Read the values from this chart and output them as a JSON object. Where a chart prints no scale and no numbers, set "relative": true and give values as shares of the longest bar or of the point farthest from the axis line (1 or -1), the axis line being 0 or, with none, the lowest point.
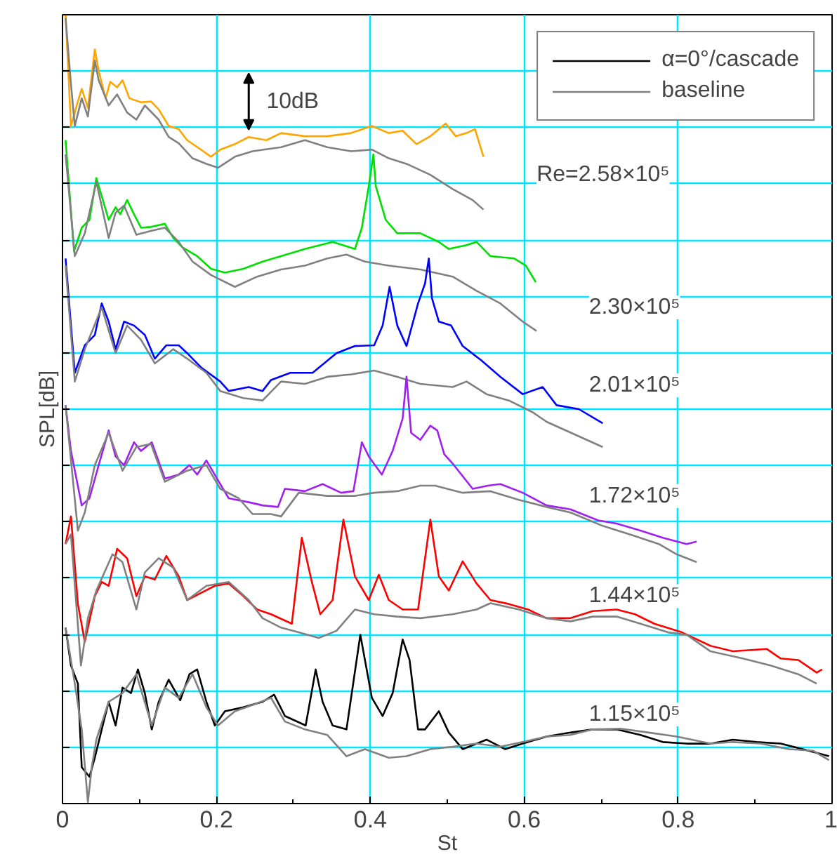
{
  "chart_data": {
    "type": "line",
    "relative": true,
    "xlabel": "St",
    "ylabel": "SPL[dB]",
    "xlim": [
      0,
      1
    ],
    "xticks": [
      0,
      0.2,
      0.4,
      0.6,
      0.8,
      1
    ],
    "tick_labels": "x",
    "grid": true,
    "legend": "top right",
    "line_style": "solid",
    "marker": "none",
    "annotations": [
      "10dB",
      "Re=2.58×10⁵",
      "2.30×10⁵",
      "2.01×10⁵",
      "1.72×10⁵",
      "1.44×10⁵",
      "1.15×10⁵"
    ],
    "series": [
      {
        "color": "#ffa500",
        "x": [
          0.004,
          0.011,
          0.02,
          0.025,
          0.033,
          0.042,
          0.047,
          0.056,
          0.062,
          0.071,
          0.078,
          0.087,
          0.102,
          0.115,
          0.125,
          0.138,
          0.151,
          0.162,
          0.18,
          0.193,
          0.205,
          0.224,
          0.242,
          0.265,
          0.284,
          0.315,
          0.344,
          0.375,
          0.402,
          0.424,
          0.442,
          0.46,
          0.478,
          0.498,
          0.511,
          0.525,
          0.536,
          0.547
        ],
        "values": [
          1.0,
          0.859,
          0.89,
          0.906,
          0.882,
          0.956,
          0.929,
          0.894,
          0.915,
          0.908,
          0.917,
          0.894,
          0.889,
          0.89,
          0.88,
          0.859,
          0.855,
          0.841,
          0.829,
          0.82,
          0.829,
          0.836,
          0.845,
          0.841,
          0.85,
          0.846,
          0.846,
          0.85,
          0.859,
          0.85,
          0.853,
          0.836,
          0.846,
          0.862,
          0.846,
          0.85,
          0.855,
          0.82
        ]
      },
      {
        "name": "baseline",
        "color": "#808080",
        "x": [
          0.004,
          0.011,
          0.016,
          0.025,
          0.033,
          0.042,
          0.047,
          0.06,
          0.071,
          0.084,
          0.096,
          0.107,
          0.125,
          0.138,
          0.151,
          0.169,
          0.187,
          0.202,
          0.224,
          0.247,
          0.284,
          0.315,
          0.344,
          0.375,
          0.402,
          0.424,
          0.447,
          0.478,
          0.507,
          0.533,
          0.547
        ],
        "values": [
          0.996,
          0.912,
          0.859,
          0.894,
          0.871,
          0.942,
          0.917,
          0.885,
          0.899,
          0.876,
          0.867,
          0.885,
          0.867,
          0.845,
          0.837,
          0.818,
          0.811,
          0.806,
          0.82,
          0.827,
          0.832,
          0.841,
          0.832,
          0.827,
          0.829,
          0.818,
          0.811,
          0.797,
          0.779,
          0.765,
          0.753
        ]
      },
      {
        "color": "#00e000",
        "x": [
          0.004,
          0.015,
          0.025,
          0.035,
          0.044,
          0.051,
          0.06,
          0.069,
          0.075,
          0.084,
          0.093,
          0.102,
          0.115,
          0.133,
          0.144,
          0.156,
          0.175,
          0.193,
          0.211,
          0.235,
          0.26,
          0.284,
          0.315,
          0.351,
          0.38,
          0.389,
          0.398,
          0.404,
          0.407,
          0.42,
          0.435,
          0.465,
          0.489,
          0.502,
          0.525,
          0.538,
          0.556,
          0.587,
          0.602,
          0.615
        ],
        "values": [
          0.841,
          0.7,
          0.73,
          0.74,
          0.793,
          0.77,
          0.74,
          0.756,
          0.747,
          0.765,
          0.747,
          0.73,
          0.731,
          0.735,
          0.717,
          0.705,
          0.694,
          0.678,
          0.673,
          0.678,
          0.687,
          0.694,
          0.703,
          0.712,
          0.703,
          0.73,
          0.783,
          0.823,
          0.783,
          0.74,
          0.723,
          0.723,
          0.712,
          0.703,
          0.708,
          0.712,
          0.694,
          0.691,
          0.682,
          0.661
        ]
      },
      {
        "color": "#808080",
        "x": [
          0.004,
          0.016,
          0.029,
          0.044,
          0.06,
          0.069,
          0.08,
          0.096,
          0.115,
          0.133,
          0.151,
          0.169,
          0.193,
          0.224,
          0.253,
          0.284,
          0.315,
          0.344,
          0.369,
          0.393,
          0.424,
          0.465,
          0.507,
          0.538,
          0.569,
          0.598,
          0.616
        ],
        "values": [
          0.823,
          0.694,
          0.723,
          0.788,
          0.717,
          0.749,
          0.758,
          0.721,
          0.726,
          0.73,
          0.712,
          0.687,
          0.67,
          0.655,
          0.668,
          0.677,
          0.682,
          0.691,
          0.696,
          0.687,
          0.682,
          0.677,
          0.668,
          0.65,
          0.634,
          0.611,
          0.599
        ]
      },
      {
        "color": "#0000ff",
        "x": [
          0.004,
          0.016,
          0.029,
          0.042,
          0.051,
          0.06,
          0.069,
          0.08,
          0.093,
          0.107,
          0.12,
          0.135,
          0.151,
          0.162,
          0.18,
          0.205,
          0.216,
          0.242,
          0.26,
          0.271,
          0.296,
          0.325,
          0.356,
          0.38,
          0.405,
          0.416,
          0.425,
          0.435,
          0.447,
          0.462,
          0.471,
          0.476,
          0.48,
          0.489,
          0.505,
          0.52,
          0.544,
          0.569,
          0.598,
          0.624,
          0.642,
          0.671,
          0.702
        ],
        "values": [
          0.691,
          0.546,
          0.581,
          0.594,
          0.634,
          0.611,
          0.576,
          0.611,
          0.606,
          0.594,
          0.564,
          0.581,
          0.581,
          0.571,
          0.553,
          0.535,
          0.523,
          0.528,
          0.523,
          0.537,
          0.546,
          0.546,
          0.571,
          0.58,
          0.581,
          0.606,
          0.655,
          0.606,
          0.58,
          0.634,
          0.659,
          0.691,
          0.641,
          0.611,
          0.606,
          0.58,
          0.562,
          0.541,
          0.519,
          0.528,
          0.505,
          0.5,
          0.482
        ]
      },
      {
        "color": "#808080",
        "x": [
          0.004,
          0.016,
          0.029,
          0.051,
          0.069,
          0.084,
          0.102,
          0.12,
          0.144,
          0.162,
          0.187,
          0.205,
          0.235,
          0.26,
          0.284,
          0.315,
          0.344,
          0.375,
          0.405,
          0.435,
          0.465,
          0.507,
          0.525,
          0.551,
          0.58,
          0.611,
          0.629,
          0.702
        ],
        "values": [
          0.682,
          0.535,
          0.576,
          0.629,
          0.571,
          0.606,
          0.588,
          0.558,
          0.576,
          0.564,
          0.546,
          0.523,
          0.514,
          0.511,
          0.535,
          0.532,
          0.541,
          0.544,
          0.549,
          0.541,
          0.532,
          0.528,
          0.535,
          0.519,
          0.511,
          0.496,
          0.484,
          0.452
        ]
      },
      {
        "color": "#a020f0",
        "x": [
          0.004,
          0.011,
          0.025,
          0.035,
          0.047,
          0.06,
          0.069,
          0.08,
          0.093,
          0.102,
          0.116,
          0.133,
          0.151,
          0.165,
          0.175,
          0.187,
          0.205,
          0.216,
          0.242,
          0.26,
          0.28,
          0.289,
          0.315,
          0.338,
          0.362,
          0.378,
          0.389,
          0.398,
          0.415,
          0.429,
          0.442,
          0.447,
          0.453,
          0.465,
          0.478,
          0.487,
          0.496,
          0.507,
          0.533,
          0.553,
          0.569,
          0.598,
          0.629,
          0.66,
          0.696,
          0.72,
          0.751,
          0.78,
          0.811,
          0.824
        ],
        "values": [
          0.505,
          0.447,
          0.378,
          0.387,
          0.429,
          0.473,
          0.44,
          0.429,
          0.458,
          0.447,
          0.458,
          0.412,
          0.417,
          0.429,
          0.417,
          0.435,
          0.405,
          0.387,
          0.382,
          0.378,
          0.376,
          0.399,
          0.396,
          0.405,
          0.394,
          0.396,
          0.458,
          0.44,
          0.417,
          0.447,
          0.488,
          0.541,
          0.47,
          0.461,
          0.479,
          0.473,
          0.443,
          0.431,
          0.399,
          0.403,
          0.405,
          0.394,
          0.378,
          0.373,
          0.359,
          0.355,
          0.346,
          0.337,
          0.329,
          0.332
        ]
      },
      {
        "color": "#808080",
        "x": [
          0.004,
          0.02,
          0.029,
          0.042,
          0.06,
          0.078,
          0.096,
          0.115,
          0.133,
          0.162,
          0.187,
          0.205,
          0.229,
          0.247,
          0.271,
          0.284,
          0.307,
          0.344,
          0.38,
          0.405,
          0.435,
          0.465,
          0.484,
          0.52,
          0.556,
          0.593,
          0.629,
          0.66,
          0.702,
          0.738,
          0.775,
          0.798,
          0.824
        ],
        "values": [
          0.505,
          0.346,
          0.369,
          0.429,
          0.47,
          0.422,
          0.452,
          0.456,
          0.408,
          0.422,
          0.429,
          0.399,
          0.387,
          0.367,
          0.367,
          0.364,
          0.394,
          0.39,
          0.39,
          0.394,
          0.396,
          0.403,
          0.403,
          0.394,
          0.396,
          0.385,
          0.376,
          0.369,
          0.352,
          0.341,
          0.329,
          0.316,
          0.306
        ]
      },
      {
        "color": "#ff0000",
        "x": [
          0.004,
          0.011,
          0.02,
          0.029,
          0.042,
          0.051,
          0.06,
          0.071,
          0.084,
          0.096,
          0.107,
          0.12,
          0.135,
          0.151,
          0.162,
          0.18,
          0.198,
          0.216,
          0.235,
          0.253,
          0.271,
          0.298,
          0.311,
          0.324,
          0.335,
          0.351,
          0.365,
          0.38,
          0.398,
          0.411,
          0.424,
          0.442,
          0.462,
          0.478,
          0.489,
          0.502,
          0.52,
          0.538,
          0.556,
          0.58,
          0.605,
          0.629,
          0.66,
          0.689,
          0.72,
          0.744,
          0.769,
          0.805,
          0.842,
          0.871,
          0.915,
          0.933,
          0.956,
          0.98,
          0.987
        ],
        "values": [
          0.329,
          0.364,
          0.253,
          0.205,
          0.263,
          0.281,
          0.276,
          0.323,
          0.311,
          0.263,
          0.288,
          0.284,
          0.314,
          0.288,
          0.258,
          0.267,
          0.276,
          0.279,
          0.263,
          0.246,
          0.24,
          0.228,
          0.337,
          0.281,
          0.24,
          0.258,
          0.36,
          0.288,
          0.258,
          0.29,
          0.258,
          0.246,
          0.246,
          0.36,
          0.288,
          0.27,
          0.307,
          0.279,
          0.258,
          0.253,
          0.246,
          0.235,
          0.235,
          0.244,
          0.246,
          0.24,
          0.228,
          0.217,
          0.2,
          0.193,
          0.196,
          0.184,
          0.182,
          0.166,
          0.17
        ]
      },
      {
        "color": "#808080",
        "x": [
          0.004,
          0.011,
          0.024,
          0.033,
          0.044,
          0.065,
          0.078,
          0.096,
          0.107,
          0.125,
          0.144,
          0.162,
          0.187,
          0.216,
          0.242,
          0.26,
          0.284,
          0.307,
          0.333,
          0.356,
          0.38,
          0.405,
          0.435,
          0.465,
          0.507,
          0.538,
          0.556,
          0.593,
          0.629,
          0.66,
          0.689,
          0.72,
          0.751,
          0.787,
          0.811,
          0.842,
          0.884,
          0.92,
          0.956,
          0.98
        ],
        "values": [
          0.329,
          0.341,
          0.175,
          0.235,
          0.27,
          0.316,
          0.306,
          0.246,
          0.293,
          0.311,
          0.299,
          0.258,
          0.276,
          0.281,
          0.258,
          0.235,
          0.223,
          0.217,
          0.21,
          0.219,
          0.246,
          0.24,
          0.237,
          0.235,
          0.24,
          0.246,
          0.254,
          0.246,
          0.235,
          0.231,
          0.237,
          0.237,
          0.228,
          0.217,
          0.214,
          0.193,
          0.184,
          0.175,
          0.164,
          0.152
        ]
      },
      {
        "name": "α=0°/cascade",
        "color": "#000000",
        "x": [
          0.004,
          0.011,
          0.02,
          0.025,
          0.035,
          0.042,
          0.051,
          0.06,
          0.069,
          0.078,
          0.089,
          0.098,
          0.107,
          0.116,
          0.125,
          0.138,
          0.153,
          0.165,
          0.175,
          0.187,
          0.198,
          0.211,
          0.235,
          0.26,
          0.275,
          0.289,
          0.316,
          0.329,
          0.338,
          0.351,
          0.369,
          0.387,
          0.402,
          0.416,
          0.429,
          0.442,
          0.451,
          0.462,
          0.471,
          0.489,
          0.502,
          0.52,
          0.551,
          0.575,
          0.598,
          0.629,
          0.66,
          0.689,
          0.72,
          0.751,
          0.78,
          0.811,
          0.842,
          0.871,
          0.902,
          0.933,
          0.962,
          0.996
        ],
        "values": [
          0.223,
          0.175,
          0.152,
          0.046,
          0.034,
          0.058,
          0.094,
          0.129,
          0.099,
          0.147,
          0.14,
          0.17,
          0.14,
          0.094,
          0.129,
          0.157,
          0.131,
          0.164,
          0.17,
          0.129,
          0.099,
          0.117,
          0.122,
          0.129,
          0.138,
          0.111,
          0.099,
          0.17,
          0.129,
          0.099,
          0.094,
          0.214,
          0.134,
          0.111,
          0.14,
          0.208,
          0.182,
          0.094,
          0.094,
          0.117,
          0.09,
          0.069,
          0.081,
          0.069,
          0.076,
          0.085,
          0.09,
          0.094,
          0.094,
          0.087,
          0.078,
          0.076,
          0.076,
          0.081,
          0.078,
          0.076,
          0.069,
          0.06
        ]
      },
      {
        "color": "#808080",
        "x": [
          0.004,
          0.016,
          0.025,
          0.033,
          0.038,
          0.044,
          0.06,
          0.078,
          0.096,
          0.116,
          0.133,
          0.151,
          0.169,
          0.187,
          0.202,
          0.224,
          0.247,
          0.271,
          0.289,
          0.315,
          0.344,
          0.369,
          0.393,
          0.424,
          0.447,
          0.478,
          0.507,
          0.538,
          0.569,
          0.598,
          0.629,
          0.66,
          0.689,
          0.725,
          0.762,
          0.798,
          0.842,
          0.871,
          0.907,
          0.944,
          0.975,
          0.996
        ],
        "values": [
          0.223,
          0.152,
          0.094,
          0.002,
          0.046,
          0.081,
          0.129,
          0.14,
          0.164,
          0.099,
          0.147,
          0.134,
          0.164,
          0.122,
          0.099,
          0.117,
          0.125,
          0.134,
          0.104,
          0.094,
          0.087,
          0.06,
          0.069,
          0.058,
          0.06,
          0.069,
          0.072,
          0.076,
          0.072,
          0.078,
          0.085,
          0.087,
          0.094,
          0.095,
          0.09,
          0.085,
          0.076,
          0.078,
          0.076,
          0.069,
          0.067,
          0.055
        ]
      }
    ]
  }
}
